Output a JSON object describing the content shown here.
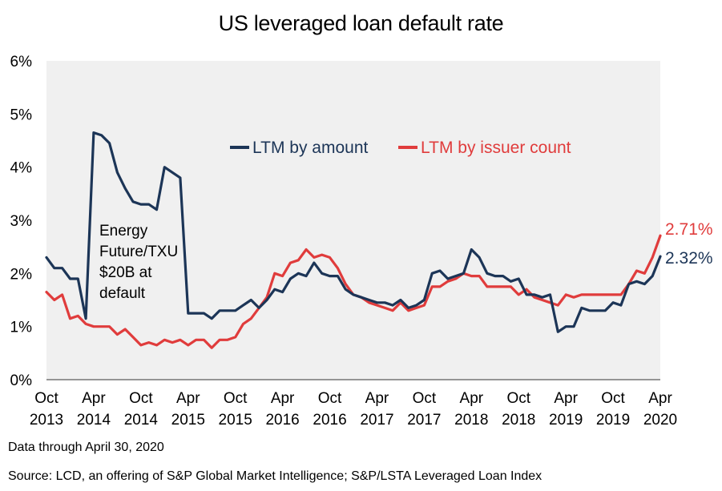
{
  "chart_data": {
    "type": "line",
    "title": "US leveraged loan default rate",
    "xlabel": "",
    "ylabel": "",
    "ylim": [
      0,
      6
    ],
    "y_ticks": [
      "0%",
      "1%",
      "2%",
      "3%",
      "4%",
      "5%",
      "6%"
    ],
    "x_ticks": [
      [
        "Oct",
        "2013"
      ],
      [
        "Apr",
        "2014"
      ],
      [
        "Oct",
        "2014"
      ],
      [
        "Apr",
        "2015"
      ],
      [
        "Oct",
        "2015"
      ],
      [
        "Apr",
        "2016"
      ],
      [
        "Oct",
        "2016"
      ],
      [
        "Apr",
        "2017"
      ],
      [
        "Oct",
        "2017"
      ],
      [
        "Apr",
        "2018"
      ],
      [
        "Oct",
        "2018"
      ],
      [
        "Apr",
        "2019"
      ],
      [
        "Oct",
        "2019"
      ],
      [
        "Apr",
        "2020"
      ]
    ],
    "x_start": "2013-10",
    "x_end": "2020-04",
    "grid": false,
    "legend_position": "top-center",
    "annotation": [
      "Energy",
      "Future/TXU",
      "$20B at",
      "default"
    ],
    "series": [
      {
        "name": "LTM by amount",
        "color": "#1c3557",
        "end_label": "2.32%",
        "points": [
          [
            "2013-10",
            2.3
          ],
          [
            "2013-11",
            2.1
          ],
          [
            "2013-12",
            2.1
          ],
          [
            "2014-01",
            1.9
          ],
          [
            "2014-02",
            1.9
          ],
          [
            "2014-03",
            1.15
          ],
          [
            "2014-04",
            4.65
          ],
          [
            "2014-05",
            4.6
          ],
          [
            "2014-06",
            4.45
          ],
          [
            "2014-07",
            3.9
          ],
          [
            "2014-08",
            3.6
          ],
          [
            "2014-09",
            3.35
          ],
          [
            "2014-10",
            3.3
          ],
          [
            "2014-11",
            3.3
          ],
          [
            "2014-12",
            3.2
          ],
          [
            "2015-01",
            4.0
          ],
          [
            "2015-02",
            3.9
          ],
          [
            "2015-03",
            3.8
          ],
          [
            "2015-04",
            1.25
          ],
          [
            "2015-05",
            1.25
          ],
          [
            "2015-06",
            1.25
          ],
          [
            "2015-07",
            1.15
          ],
          [
            "2015-08",
            1.3
          ],
          [
            "2015-09",
            1.3
          ],
          [
            "2015-10",
            1.3
          ],
          [
            "2015-11",
            1.4
          ],
          [
            "2015-12",
            1.5
          ],
          [
            "2016-01",
            1.35
          ],
          [
            "2016-02",
            1.5
          ],
          [
            "2016-03",
            1.7
          ],
          [
            "2016-04",
            1.65
          ],
          [
            "2016-05",
            1.9
          ],
          [
            "2016-06",
            2.0
          ],
          [
            "2016-07",
            1.95
          ],
          [
            "2016-08",
            2.2
          ],
          [
            "2016-09",
            2.0
          ],
          [
            "2016-10",
            1.95
          ],
          [
            "2016-11",
            1.95
          ],
          [
            "2016-12",
            1.7
          ],
          [
            "2017-01",
            1.6
          ],
          [
            "2017-02",
            1.55
          ],
          [
            "2017-03",
            1.5
          ],
          [
            "2017-04",
            1.45
          ],
          [
            "2017-05",
            1.45
          ],
          [
            "2017-06",
            1.4
          ],
          [
            "2017-07",
            1.5
          ],
          [
            "2017-08",
            1.35
          ],
          [
            "2017-09",
            1.4
          ],
          [
            "2017-10",
            1.5
          ],
          [
            "2017-11",
            2.0
          ],
          [
            "2017-12",
            2.05
          ],
          [
            "2018-01",
            1.9
          ],
          [
            "2018-02",
            1.95
          ],
          [
            "2018-03",
            2.0
          ],
          [
            "2018-04",
            2.45
          ],
          [
            "2018-05",
            2.3
          ],
          [
            "2018-06",
            2.0
          ],
          [
            "2018-07",
            1.95
          ],
          [
            "2018-08",
            1.95
          ],
          [
            "2018-09",
            1.85
          ],
          [
            "2018-10",
            1.9
          ],
          [
            "2018-11",
            1.6
          ],
          [
            "2018-12",
            1.6
          ],
          [
            "2019-01",
            1.55
          ],
          [
            "2019-02",
            1.6
          ],
          [
            "2019-03",
            0.9
          ],
          [
            "2019-04",
            1.0
          ],
          [
            "2019-05",
            1.0
          ],
          [
            "2019-06",
            1.35
          ],
          [
            "2019-07",
            1.3
          ],
          [
            "2019-08",
            1.3
          ],
          [
            "2019-09",
            1.3
          ],
          [
            "2019-10",
            1.45
          ],
          [
            "2019-11",
            1.4
          ],
          [
            "2019-12",
            1.8
          ],
          [
            "2020-01",
            1.85
          ],
          [
            "2020-02",
            1.8
          ],
          [
            "2020-03",
            1.95
          ],
          [
            "2020-04",
            2.32
          ]
        ]
      },
      {
        "name": "LTM by issuer count",
        "color": "#e03c3c",
        "end_label": "2.71%",
        "points": [
          [
            "2013-10",
            1.65
          ],
          [
            "2013-11",
            1.5
          ],
          [
            "2013-12",
            1.6
          ],
          [
            "2014-01",
            1.15
          ],
          [
            "2014-02",
            1.2
          ],
          [
            "2014-03",
            1.05
          ],
          [
            "2014-04",
            1.0
          ],
          [
            "2014-05",
            1.0
          ],
          [
            "2014-06",
            1.0
          ],
          [
            "2014-07",
            0.85
          ],
          [
            "2014-08",
            0.95
          ],
          [
            "2014-09",
            0.8
          ],
          [
            "2014-10",
            0.65
          ],
          [
            "2014-11",
            0.7
          ],
          [
            "2014-12",
            0.65
          ],
          [
            "2015-01",
            0.75
          ],
          [
            "2015-02",
            0.7
          ],
          [
            "2015-03",
            0.75
          ],
          [
            "2015-04",
            0.65
          ],
          [
            "2015-05",
            0.75
          ],
          [
            "2015-06",
            0.75
          ],
          [
            "2015-07",
            0.6
          ],
          [
            "2015-08",
            0.75
          ],
          [
            "2015-09",
            0.75
          ],
          [
            "2015-10",
            0.8
          ],
          [
            "2015-11",
            1.05
          ],
          [
            "2015-12",
            1.15
          ],
          [
            "2016-01",
            1.35
          ],
          [
            "2016-02",
            1.55
          ],
          [
            "2016-03",
            2.0
          ],
          [
            "2016-04",
            1.95
          ],
          [
            "2016-05",
            2.2
          ],
          [
            "2016-06",
            2.25
          ],
          [
            "2016-07",
            2.45
          ],
          [
            "2016-08",
            2.3
          ],
          [
            "2016-09",
            2.35
          ],
          [
            "2016-10",
            2.3
          ],
          [
            "2016-11",
            2.1
          ],
          [
            "2016-12",
            1.8
          ],
          [
            "2017-01",
            1.6
          ],
          [
            "2017-02",
            1.55
          ],
          [
            "2017-03",
            1.45
          ],
          [
            "2017-04",
            1.4
          ],
          [
            "2017-05",
            1.35
          ],
          [
            "2017-06",
            1.3
          ],
          [
            "2017-07",
            1.45
          ],
          [
            "2017-08",
            1.3
          ],
          [
            "2017-09",
            1.35
          ],
          [
            "2017-10",
            1.4
          ],
          [
            "2017-11",
            1.75
          ],
          [
            "2017-12",
            1.75
          ],
          [
            "2018-01",
            1.85
          ],
          [
            "2018-02",
            1.9
          ],
          [
            "2018-03",
            2.0
          ],
          [
            "2018-04",
            1.95
          ],
          [
            "2018-05",
            1.95
          ],
          [
            "2018-06",
            1.75
          ],
          [
            "2018-07",
            1.75
          ],
          [
            "2018-08",
            1.75
          ],
          [
            "2018-09",
            1.75
          ],
          [
            "2018-10",
            1.6
          ],
          [
            "2018-11",
            1.7
          ],
          [
            "2018-12",
            1.55
          ],
          [
            "2019-01",
            1.5
          ],
          [
            "2019-02",
            1.45
          ],
          [
            "2019-03",
            1.4
          ],
          [
            "2019-04",
            1.6
          ],
          [
            "2019-05",
            1.55
          ],
          [
            "2019-06",
            1.6
          ],
          [
            "2019-07",
            1.6
          ],
          [
            "2019-08",
            1.6
          ],
          [
            "2019-09",
            1.6
          ],
          [
            "2019-10",
            1.6
          ],
          [
            "2019-11",
            1.6
          ],
          [
            "2019-12",
            1.8
          ],
          [
            "2020-01",
            2.05
          ],
          [
            "2020-02",
            2.0
          ],
          [
            "2020-03",
            2.3
          ],
          [
            "2020-04",
            2.71
          ]
        ]
      }
    ]
  },
  "footnotes": {
    "data_through": "Data through April 30, 2020",
    "source": "Source: LCD, an offering of S&P Global Market Intelligence; S&P/LSTA Leveraged Loan Index"
  }
}
